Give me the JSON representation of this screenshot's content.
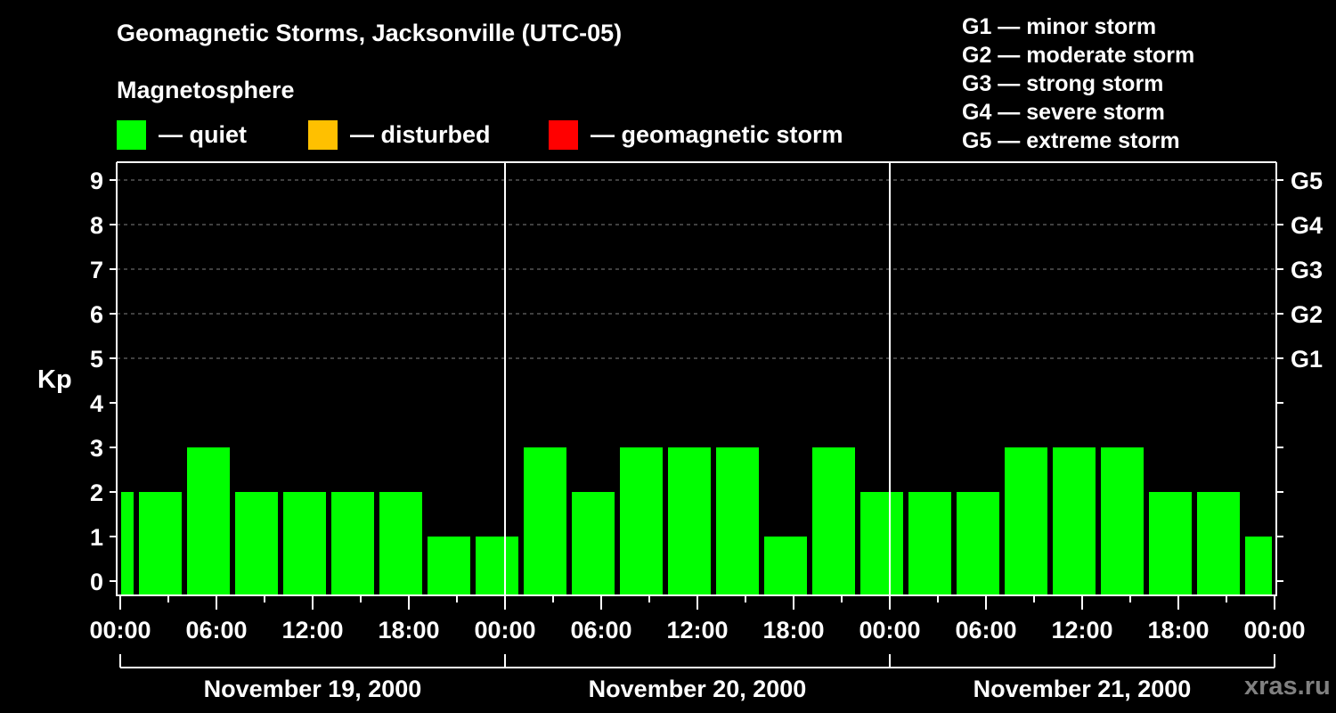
{
  "header": {
    "title": "Geomagnetic Storms, Jacksonville (UTC-05)",
    "subtitle": "Magnetosphere"
  },
  "legend": [
    {
      "label": "— quiet",
      "color": "#00ff00"
    },
    {
      "label": "— disturbed",
      "color": "#ffc000"
    },
    {
      "label": "— geomagnetic storm",
      "color": "#ff0000"
    }
  ],
  "g_scale_legend": [
    "G1 — minor storm",
    "G2 — moderate storm",
    "G3 — strong storm",
    "G4 — severe storm",
    "G5 — extreme storm"
  ],
  "watermark": "xras.ru",
  "chart_data": {
    "type": "bar",
    "title": "Geomagnetic Storms, Jacksonville (UTC-05)",
    "subtitle": "Magnetosphere",
    "ylabel": "Kp",
    "xlabel": "",
    "ylim": [
      0,
      9
    ],
    "y_ticks": [
      0,
      1,
      2,
      3,
      4,
      5,
      6,
      7,
      8,
      9
    ],
    "right_axis_ticks": [
      {
        "kp": 5,
        "label": "G1"
      },
      {
        "kp": 6,
        "label": "G2"
      },
      {
        "kp": 7,
        "label": "G3"
      },
      {
        "kp": 8,
        "label": "G4"
      },
      {
        "kp": 9,
        "label": "G5"
      }
    ],
    "grid": "dashed horizontal at Kp 5-9",
    "x_tick_labels": [
      "00:00",
      "06:00",
      "12:00",
      "18:00",
      "00:00",
      "06:00",
      "12:00",
      "18:00",
      "00:00",
      "06:00",
      "12:00",
      "18:00",
      "00:00"
    ],
    "day_labels": [
      "November 19, 2000",
      "November 20, 2000",
      "November 21, 2000"
    ],
    "bin_hours": 3,
    "first_bin_start_hour": -2,
    "categories": [
      "Nov19 22:00-01:00",
      "Nov19 01:00",
      "Nov19 04:00",
      "Nov19 07:00",
      "Nov19 10:00",
      "Nov19 13:00",
      "Nov19 16:00",
      "Nov19 19:00",
      "Nov19 22:00",
      "Nov20 01:00",
      "Nov20 04:00",
      "Nov20 07:00",
      "Nov20 10:00",
      "Nov20 13:00",
      "Nov20 16:00",
      "Nov20 19:00",
      "Nov20 22:00",
      "Nov21 01:00",
      "Nov21 04:00",
      "Nov21 07:00",
      "Nov21 10:00",
      "Nov21 13:00",
      "Nov21 16:00",
      "Nov21 19:00",
      "Nov21 22:00"
    ],
    "values": [
      2,
      2,
      3,
      2,
      2,
      2,
      2,
      1,
      1,
      3,
      2,
      3,
      3,
      3,
      1,
      3,
      2,
      2,
      2,
      3,
      3,
      3,
      2,
      2,
      1
    ],
    "bar_color": "#00ff00",
    "legend": [
      "quiet",
      "disturbed",
      "geomagnetic storm"
    ]
  }
}
